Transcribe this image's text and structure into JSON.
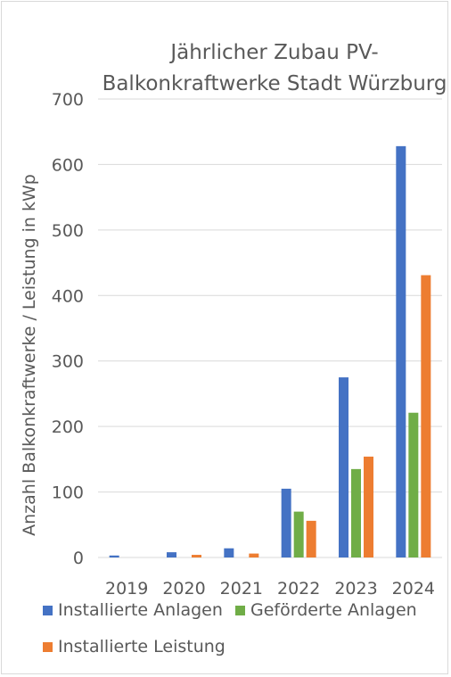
{
  "chart_data": {
    "type": "bar",
    "title_lines": [
      "Jährlicher Zubau PV-",
      "Balkonkraftwerke Stadt Würzburg"
    ],
    "title": "Jährlicher Zubau PV-Balkonkraftwerke Stadt Würzburg",
    "xlabel": "",
    "ylabel": "Anzahl Balkonkraftwerke / Leistung in kWp",
    "categories": [
      "2019",
      "2020",
      "2021",
      "2022",
      "2023",
      "2024"
    ],
    "ylim": [
      0,
      700
    ],
    "yticks": [
      0,
      100,
      200,
      300,
      400,
      500,
      600,
      700
    ],
    "grid": true,
    "legend_position": "bottom",
    "series": [
      {
        "name": "Installierte Anlagen",
        "color": "#4472c4",
        "values": [
          3,
          8,
          14,
          105,
          275,
          628
        ]
      },
      {
        "name": "Geförderte Anlagen",
        "color": "#70ad47",
        "values": [
          0,
          0,
          0,
          70,
          135,
          221
        ]
      },
      {
        "name": "Installierte Leistung",
        "color": "#ed7d31",
        "values": [
          0,
          4,
          6,
          56,
          154,
          431
        ]
      }
    ]
  }
}
